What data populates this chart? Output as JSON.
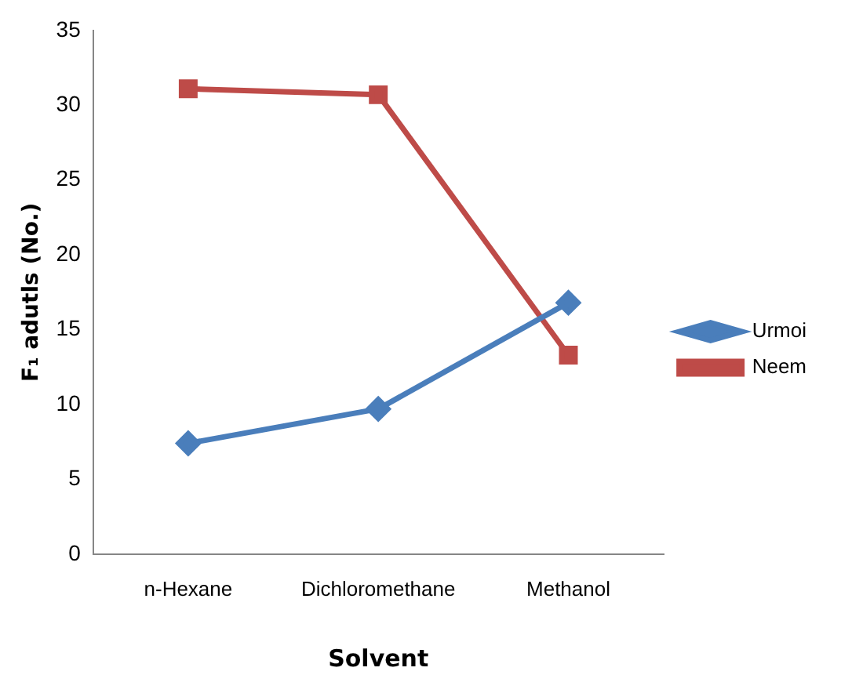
{
  "chart_data": {
    "type": "line",
    "xlabel": "Solvent",
    "ylabel": "F₁ adutls (No.)",
    "categories": [
      "n-Hexane",
      "Dichloromethane",
      "Methanol"
    ],
    "series": [
      {
        "name": "Urmoi",
        "color": "#4a7ebb",
        "marker": "diamond",
        "values": [
          7.4,
          9.7,
          16.8
        ]
      },
      {
        "name": "Neem",
        "color": "#be4b48",
        "marker": "square",
        "values": [
          31.1,
          30.7,
          13.3
        ]
      }
    ],
    "ylim": [
      0,
      35
    ],
    "yticks": [
      0,
      5,
      10,
      15,
      20,
      25,
      30,
      35
    ],
    "grid": false,
    "legend": "right"
  }
}
